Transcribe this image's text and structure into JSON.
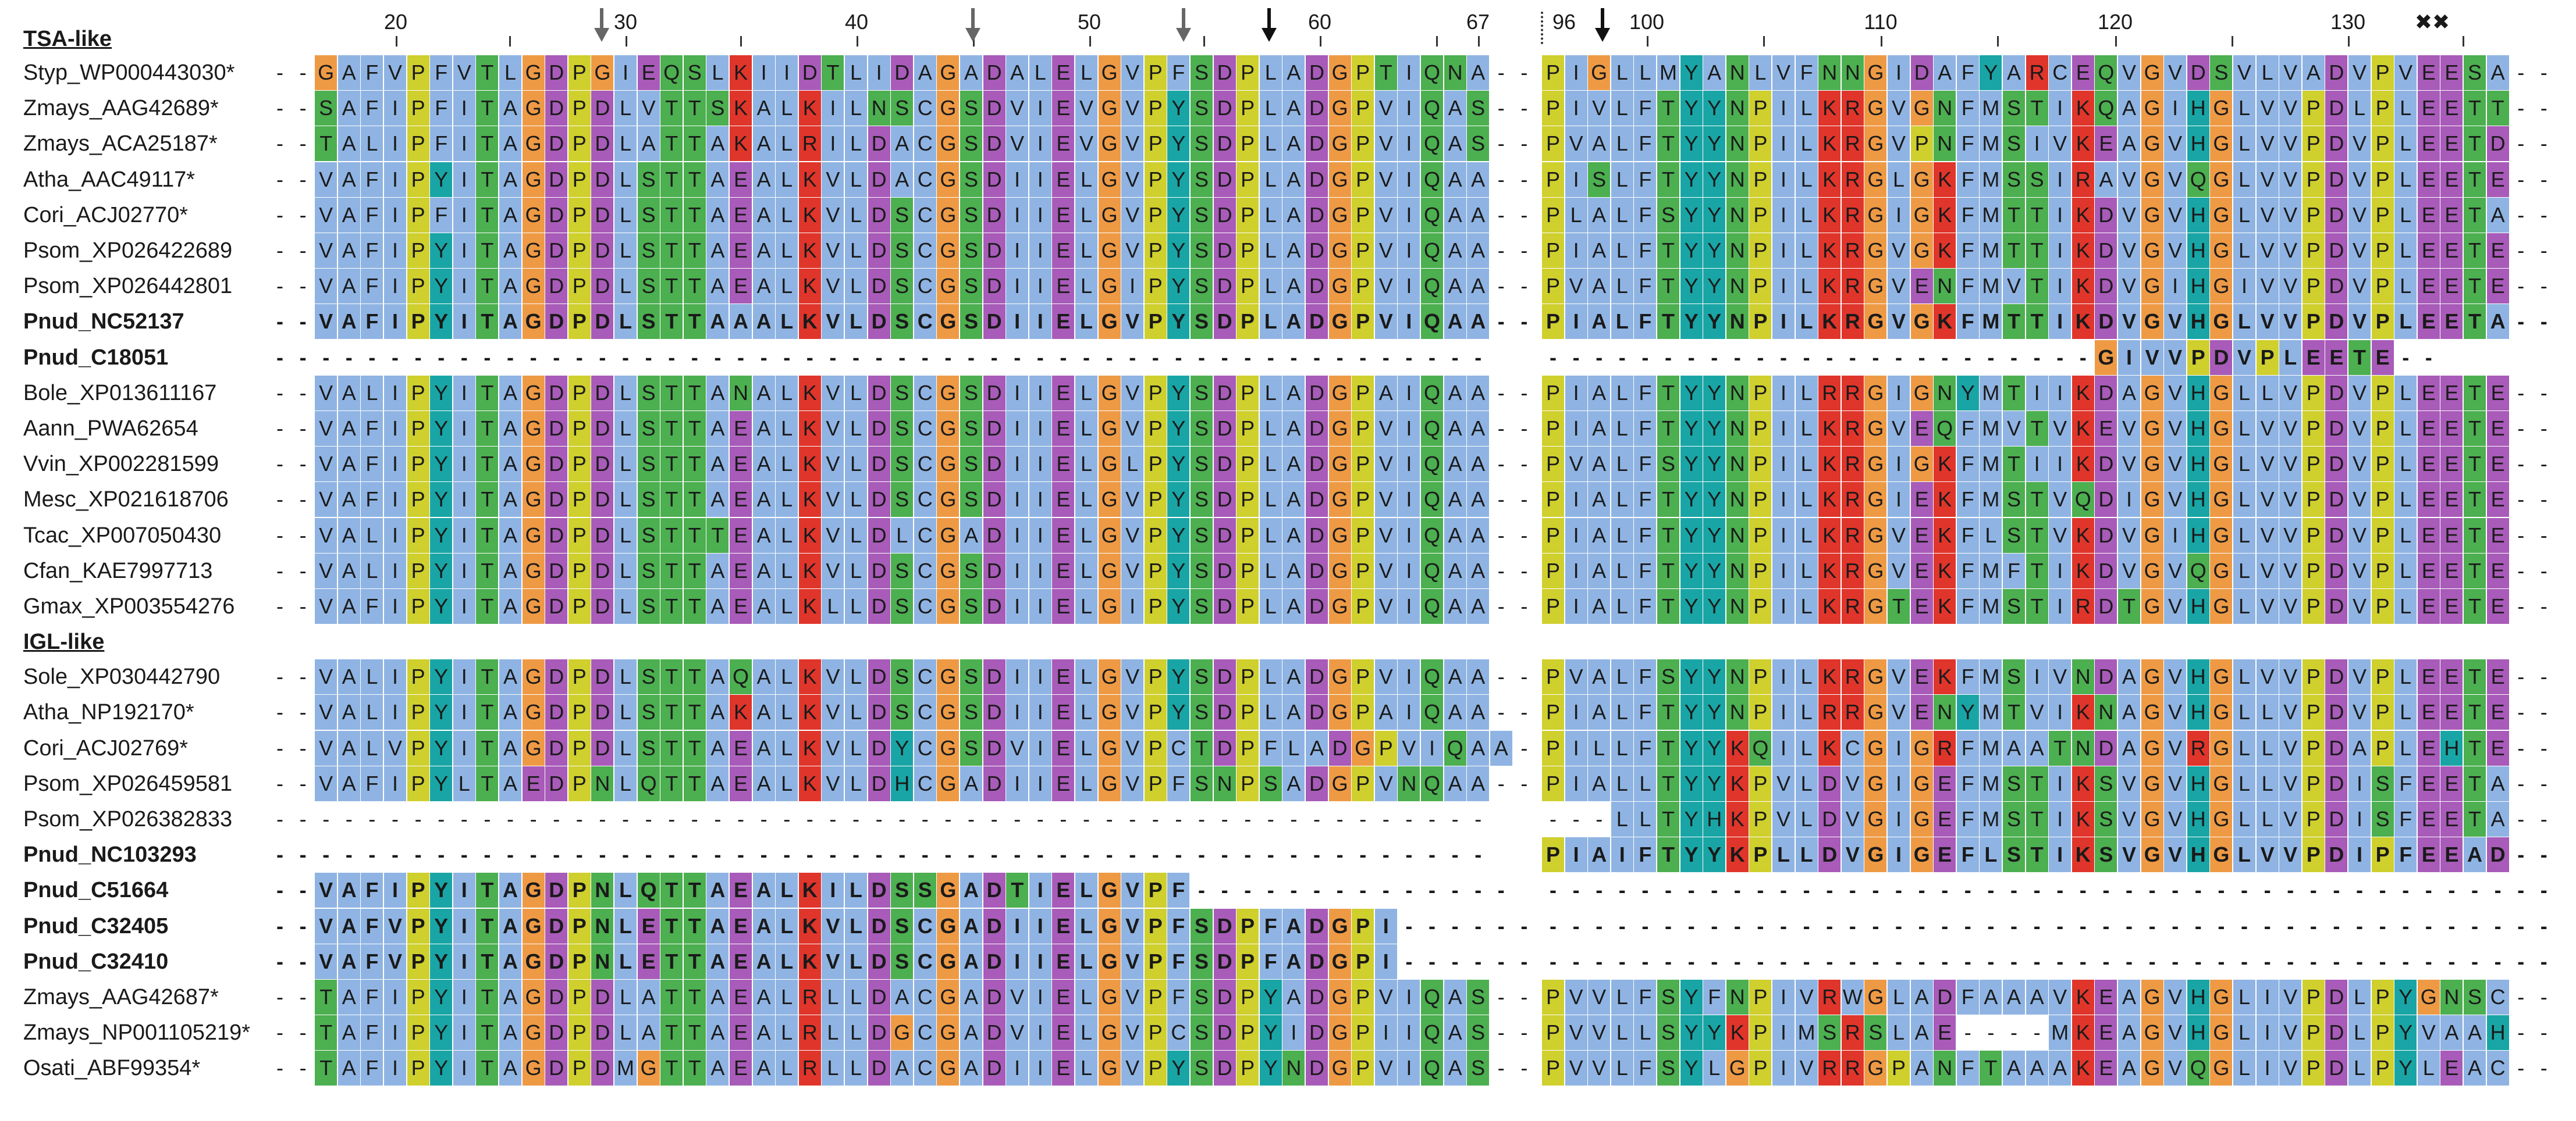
{
  "groups": [
    {
      "label": "TSA-like",
      "before_row": 0
    },
    {
      "label": "IGL-like",
      "before_row": 16
    }
  ],
  "positions_left": [
    "20",
    "30",
    "40",
    "50",
    "60",
    "67"
  ],
  "positions_right": [
    "96",
    "100",
    "110",
    "120",
    "130"
  ],
  "markers": {
    "gray_arrows": 3,
    "black_arrows": 2,
    "crosses": "✖✖"
  },
  "colors": {
    "hydrophobic": "#8fb4e3",
    "yellow": "#cfcf2e",
    "orange": "#ee9a45",
    "green": "#4caf50",
    "teal": "#19a5a5",
    "purple": "#a85bb8",
    "red": "#e0352b",
    "pink": "#e07ab0",
    "gap": "#ffffff"
  },
  "rows": [
    {
      "name": "Styp_WP000443030*",
      "bold": false,
      "left": "--GAFVPFVTLGDPGIEQSLKIIDTLIDAGADALELGVPFSDPLADGPTIQNA--",
      "right": "PIGLLMYANLVFNNGIDAFYARCEQVGVDSVLVADVPVEESA--"
    },
    {
      "name": "Zmays_AAG42689*",
      "bold": false,
      "left": "--SAFIPFITAGDPDLVTTSKALKILNSCGSDVIEVGVPYSDPLADGPVIQAS--",
      "right": "PIVLFTYYNPILKRGVGNFMSTIKQAGIHGLVVPDLPLEETT--"
    },
    {
      "name": "Zmays_ACA25187*",
      "bold": false,
      "left": "--TALIPFITAGDPDLATTAKALRILDACGSDVIEVGVPYSDPLADGPVIQAS--",
      "right": "PVALFTYYNPILKRGVPNFMSIVKEAGVHGLVVPDVPLEETD--"
    },
    {
      "name": "Atha_AAC49117*",
      "bold": false,
      "left": "--VAFIPYITAGDPDLSTTAEALKVLDACGSDIIELGVPYSDPLADGPVIQAA--",
      "right": "PISLFTYYNPILKRGLGKFMSSIRAVGVQGLVVPDVPLEETE--"
    },
    {
      "name": "Cori_ACJ02770*",
      "bold": false,
      "left": "--VAFIPFITAGDPDLSTTAEALKVLDSCGSDIIELGVPYSDPLADGPVIQAA--",
      "right": "PLALFSYYNPILKRGIGKFMTTIKDVGVHGLVVPDVPLEETA--"
    },
    {
      "name": "Psom_XP026422689",
      "bold": false,
      "left": "--VAFIPYITAGDPDLSTTAEALKVLDSCGSDIIELGVPYSDPLADGPVIQAA--",
      "right": "PIALFTYYNPILKRGVGKFMTTIKDVGVHGLVVPDVPLEETE--"
    },
    {
      "name": "Psom_XP026442801",
      "bold": false,
      "left": "--VAFIPYITAGDPDLSTTAEALKVLDSCGSDIIELGIPYSDPLADGPVIQAA--",
      "right": "PVALFTYYNPILKRGVENFMVTIKDVGIHGIVVPDVPLEETE--"
    },
    {
      "name": "Pnud_NC52137",
      "bold": true,
      "left": "--VAFIPYITAGDPDLSTTAAALKVLDSCGSDIIELGVPYSDPLADGPVIQAA--",
      "right": "PIALFTYYNPILKRGVGKFMTTIKDVGVHGLVVPDVPLEETA--"
    },
    {
      "name": "Pnud_C18051",
      "bold": true,
      "left": "-----------------------------------------------------",
      "right": "------------------------GIVVPDVPLEETE--"
    },
    {
      "name": "Bole_XP013611167",
      "bold": false,
      "left": "--VALIPYITAGDPDLSTTANALKVLDSCGSDIIELGVPYSDPLADGPAIQAA--",
      "right": "PIALFTYYNPILRRGIGNYMTIIKDAGVHGLLVPDVPLEETE--"
    },
    {
      "name": "Aann_PWA62654",
      "bold": false,
      "left": "--VAFIPYITAGDPDLSTTAEALKVLDSCGSDIIELGVPYSDPLADGPVIQAA--",
      "right": "PIALFTYYNPILKRGVEQFMVTVKEVGVHGLVVPDVPLEETE--"
    },
    {
      "name": "Vvin_XP002281599",
      "bold": false,
      "left": "--VAFIPYITAGDPDLSTTAEALKVLDSCGSDIIELGLPYSDPLADGPVIQAA--",
      "right": "PVALFSYYNPILKRGIGKFMTIIKDVGVHGLVVPDVPLEETE--"
    },
    {
      "name": "Mesc_XP021618706",
      "bold": false,
      "left": "--VAFIPYITAGDPDLSTTAEALKVLDSCGSDIIELGVPYSDPLADGPVIQAA--",
      "right": "PIALFTYYNPILKRGIEKFMSTVQDIGVHGLVVPDVPLEETE--"
    },
    {
      "name": "Tcac_XP007050430",
      "bold": false,
      "left": "--VALIPYITAGDPDLSTTTEALKVLDLCGADIIELGVPYSDPLADGPVIQAA--",
      "right": "PIALFTYYNPILKRGVEKFLSTVKDVGIHGLVVPDVPLEETE--"
    },
    {
      "name": "Cfan_KAE7997713",
      "bold": false,
      "left": "--VALIPYITAGDPDLSTTAEALKVLDSCGSDIIELGVPYSDPLADGPVIQAA--",
      "right": "PIALFTYYNPILKRGVEKFMFTIKDVGVQGLVVPDVPLEETE--"
    },
    {
      "name": "Gmax_XP003554276",
      "bold": false,
      "left": "--VAFIPYITAGDPDLSTTAEALKLLDSCGSDIIELGIPYSDPLADGPVIQAA--",
      "right": "PIALFTYYNPILKRGTEKFMSTIRDTGVHGLVVPDVPLEETE--"
    },
    {
      "name": "Sole_XP030442790",
      "bold": false,
      "left": "--VALIPYITAGDPDLSTTAQALKVLDSCGSDIIELGVPYSDPLADGPVIQAA--",
      "right": "PVALFSYYNPILKRGVEKFMSIVNDAGVHGLVVPDVPLEETE--"
    },
    {
      "name": "Atha_NP192170*",
      "bold": false,
      "left": "--VALIPYITAGDPDLSTTAKALKVLDSCGSDIIELGVPYSDPLADGPAIQAA--",
      "right": "PIALFTYYNPILRRGVENYMTVIKNAGVHGLLVPDVPLEETE--"
    },
    {
      "name": "Cori_ACJ02769*",
      "bold": false,
      "left": "--VALVPYITAGDPDLSTTAEALKVLDYCGSDVIELGVPCTDPFLADGPVIQAA--",
      "right": "PILLFTYYKQILKCGIGRFMAATNDAGVRGLLVPDAPLEHTE--"
    },
    {
      "name": "Psom_XP026459581",
      "bold": false,
      "left": "--VAFIPYLTAEDPNLQTTAEALKVLDHCGADIIELGVPFSNPSADGPVNQAA--",
      "right": "PIALLTYYKPVLDVGIGEFMSTIKSVGVHGLLVPDISFEETA--"
    },
    {
      "name": "Psom_XP026382833",
      "bold": false,
      "left": "-----------------------------------------------------",
      "right": "---LLTYHKPVLDVGIGEFMSTIKSVGVHGLLVPDISFEETA--"
    },
    {
      "name": "Pnud_NC103293",
      "bold": true,
      "left": "-----------------------------------------------------",
      "right": "PIAIFTYYKPLLDVGIGEFLSTIKSVGVHGLVVPDIPFEEAD--"
    },
    {
      "name": "Pnud_C51664",
      "bold": true,
      "left": "--VAFIPYITAGDPNLQTTAEALKILDSSGADTIELGVPF--------------",
      "right": "--------------------------------------------"
    },
    {
      "name": "Pnud_C32405",
      "bold": true,
      "left": "--VAFVPYITAGDPNLETTAEALKVLDSCGADIIELGVPFSDPFADGPI------",
      "right": "--------------------------------------------"
    },
    {
      "name": "Pnud_C32410",
      "bold": true,
      "left": "--VAFVPYITAGDPNLETTAEALKVLDSCGADIIELGVPFSDPFADGPI------",
      "right": "--------------------------------------------"
    },
    {
      "name": "Zmays_AAG42687*",
      "bold": false,
      "left": "--TAFIPYITAGDPDLATTAEALRLLDACGADVIELGVPFSDPYADGPVIQAS--",
      "right": "PVVLFSYFNPIVRWGLADFAAAVKEAGVHGLIVPDLPYGNSC--"
    },
    {
      "name": "Zmays_NP001105219*",
      "bold": false,
      "left": "--TAFIPYITAGDPDLATTAEALRLLDGCGADVIELGVPCSDPYIDGPIIQAS--",
      "right": "PVVLLSYYKPIMSRSLAE----MKEAGVHGLIVPDLPYVAAH--"
    },
    {
      "name": "Osati_ABF99354*",
      "bold": false,
      "left": "--TAFIPYITAGDPDMGTTAEALRLLDACGADIIELGVPYSDPYNDGPVIQAS--",
      "right": "PVVLFSYLGPIVRRGPANFTAAAKEAGVQGLIVPDLPYLEAC--"
    }
  ]
}
